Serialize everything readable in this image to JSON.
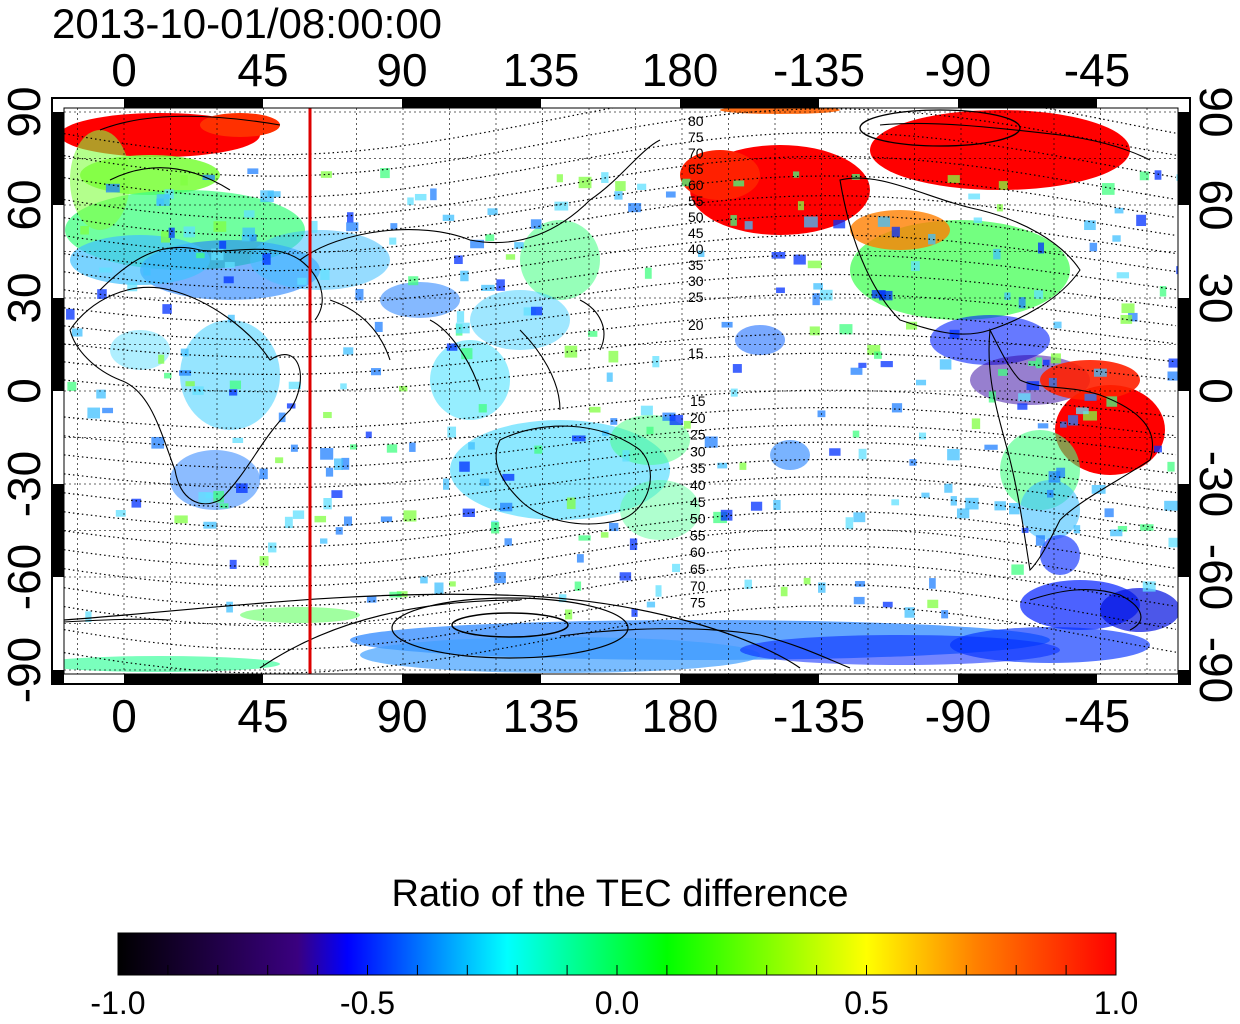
{
  "timestamp": "2013-10-01/08:00:00",
  "map": {
    "x_ticks_top": [
      "0",
      "45",
      "90",
      "135",
      "180",
      "-135",
      "-90",
      "-45"
    ],
    "x_ticks_bottom": [
      "0",
      "45",
      "90",
      "135",
      "180",
      "-135",
      "-90",
      "-45"
    ],
    "y_ticks_left": [
      "90",
      "60",
      "30",
      "0",
      "-30",
      "-60",
      "-90"
    ],
    "y_ticks_right": [
      "90",
      "60",
      "30",
      "0",
      "-30",
      "-60",
      "-90"
    ],
    "marker_longitude": 60,
    "marker_color": "#dd0000",
    "contour_labels_north": [
      "80",
      "75",
      "70",
      "65",
      "60",
      "55",
      "50",
      "45",
      "40",
      "35",
      "30",
      "25",
      "20",
      "15"
    ],
    "contour_labels_south": [
      "15",
      "20",
      "25",
      "30",
      "35",
      "40",
      "45",
      "50",
      "55",
      "60",
      "65",
      "70",
      "75"
    ]
  },
  "colorbar": {
    "title": "Ratio of the TEC difference",
    "ticks": [
      "-1.0",
      "-0.5",
      "0.0",
      "0.5",
      "1.0"
    ],
    "min": -1.0,
    "max": 1.0,
    "stops": [
      "#000000",
      "#3a0080",
      "#0000ff",
      "#00ffff",
      "#00ff00",
      "#ffff00",
      "#ff8000",
      "#ff0000"
    ]
  }
}
